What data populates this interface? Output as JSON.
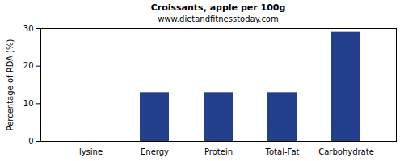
{
  "chart_data": {
    "type": "bar",
    "title": "Croissants, apple per 100g",
    "subtitle": "www.dietandfitnesstoday.com",
    "y_label": "Percentage of RDA (%)",
    "categories": [
      "lysine",
      "Energy",
      "Protein",
      "Total-Fat",
      "Carbohydrate"
    ],
    "values": [
      0,
      13,
      13,
      13,
      29
    ],
    "color": "#233f8c",
    "ylim": [
      0,
      30
    ],
    "yticks": [
      0,
      10,
      20,
      30
    ],
    "grid": false
  }
}
